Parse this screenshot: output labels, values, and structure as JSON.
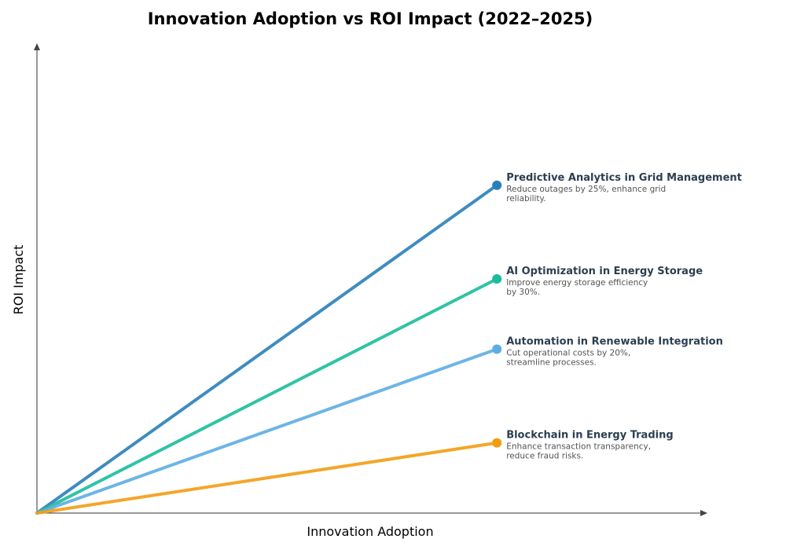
{
  "chart_data": {
    "type": "line",
    "title": "Innovation Adoption vs ROI Impact (2022–2025)",
    "xlabel": "Innovation Adoption",
    "ylabel": "ROI Impact",
    "xlim": [
      0,
      1
    ],
    "ylim": [
      0,
      1
    ],
    "grid": false,
    "ticks": false,
    "series": [
      {
        "name": "Predictive Analytics in Grid Management",
        "description": [
          "Reduce outages by 25%, enhance grid",
          "reliability."
        ],
        "color": "#2980b9",
        "points": [
          [
            0,
            0
          ],
          [
            0.7,
            0.7
          ]
        ]
      },
      {
        "name": "AI Optimization in Energy Storage",
        "description": [
          "Improve energy storage efficiency",
          "by 30%."
        ],
        "color": "#1abc9c",
        "points": [
          [
            0,
            0
          ],
          [
            0.7,
            0.5
          ]
        ]
      },
      {
        "name": "Automation in Renewable Integration",
        "description": [
          "Cut operational costs by 20%,",
          "streamline processes."
        ],
        "color": "#5dade2",
        "points": [
          [
            0,
            0
          ],
          [
            0.7,
            0.35
          ]
        ]
      },
      {
        "name": "Blockchain in Energy Trading",
        "description": [
          "Enhance transaction transparency,",
          "reduce fraud risks."
        ],
        "color": "#f39c12",
        "points": [
          [
            0,
            0
          ],
          [
            0.7,
            0.15
          ]
        ]
      }
    ]
  }
}
